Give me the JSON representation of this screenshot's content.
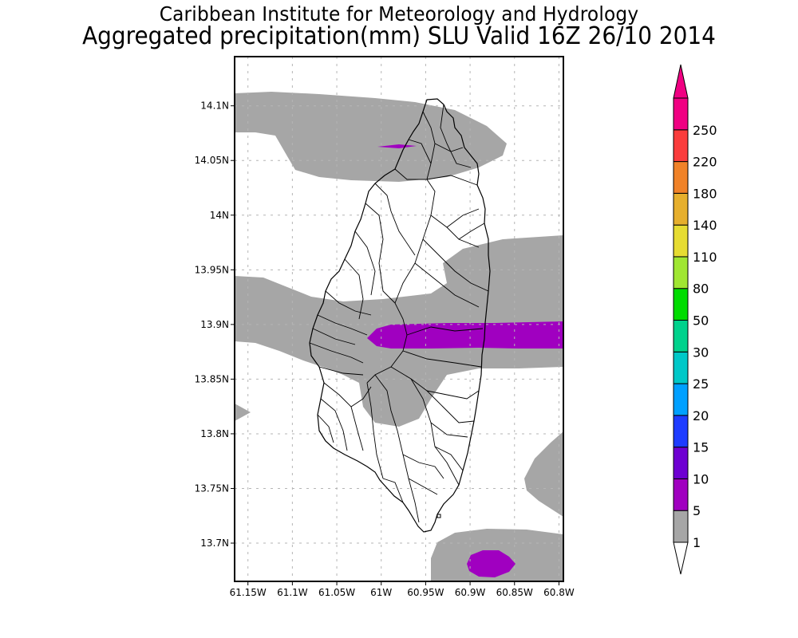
{
  "header": {
    "institution": "Caribbean Institute for Meteorology and Hydrology",
    "product": "Aggregated precipitation(mm) SLU Valid 16Z 26/10 2014"
  },
  "map": {
    "region": "SLU",
    "lon_range": [
      -61.165,
      -60.795
    ],
    "lat_range": [
      13.665,
      14.145
    ],
    "x_ticks": [
      {
        "value": -61.15,
        "label": "61.15W"
      },
      {
        "value": -61.1,
        "label": "61.1W"
      },
      {
        "value": -61.05,
        "label": "61.05W"
      },
      {
        "value": -61.0,
        "label": "61W"
      },
      {
        "value": -60.95,
        "label": "60.95W"
      },
      {
        "value": -60.9,
        "label": "60.9W"
      },
      {
        "value": -60.85,
        "label": "60.85W"
      },
      {
        "value": -60.8,
        "label": "60.8W"
      }
    ],
    "y_ticks": [
      {
        "value": 14.1,
        "label": "14.1N"
      },
      {
        "value": 14.05,
        "label": "14.05N"
      },
      {
        "value": 14.0,
        "label": "14N"
      },
      {
        "value": 13.95,
        "label": "13.95N"
      },
      {
        "value": 13.9,
        "label": "13.9N"
      },
      {
        "value": 13.85,
        "label": "13.85N"
      },
      {
        "value": 13.8,
        "label": "13.8N"
      },
      {
        "value": 13.75,
        "label": "13.75N"
      },
      {
        "value": 13.7,
        "label": "13.7N"
      }
    ],
    "grid": true
  },
  "colorbar": {
    "levels": [
      {
        "label": "1",
        "color": "#a6a6a6"
      },
      {
        "label": "5",
        "color": "#a000c0"
      },
      {
        "label": "10",
        "color": "#6e00d2"
      },
      {
        "label": "15",
        "color": "#1e3cff"
      },
      {
        "label": "20",
        "color": "#00a0ff"
      },
      {
        "label": "25",
        "color": "#00c8c8"
      },
      {
        "label": "30",
        "color": "#00d28c"
      },
      {
        "label": "50",
        "color": "#00dc00"
      },
      {
        "label": "80",
        "color": "#a0e632"
      },
      {
        "label": "110",
        "color": "#e6dc32"
      },
      {
        "label": "140",
        "color": "#e6af2d"
      },
      {
        "label": "180",
        "color": "#f08228"
      },
      {
        "label": "220",
        "color": "#fa3c3c"
      },
      {
        "label": "250",
        "color": "#f00082"
      }
    ],
    "below_color": "#ffffff",
    "above_color": "#f00082"
  },
  "colors": {
    "band_1_5": "#a6a6a6",
    "band_5_10": "#a000c0",
    "coast": "#000000"
  }
}
